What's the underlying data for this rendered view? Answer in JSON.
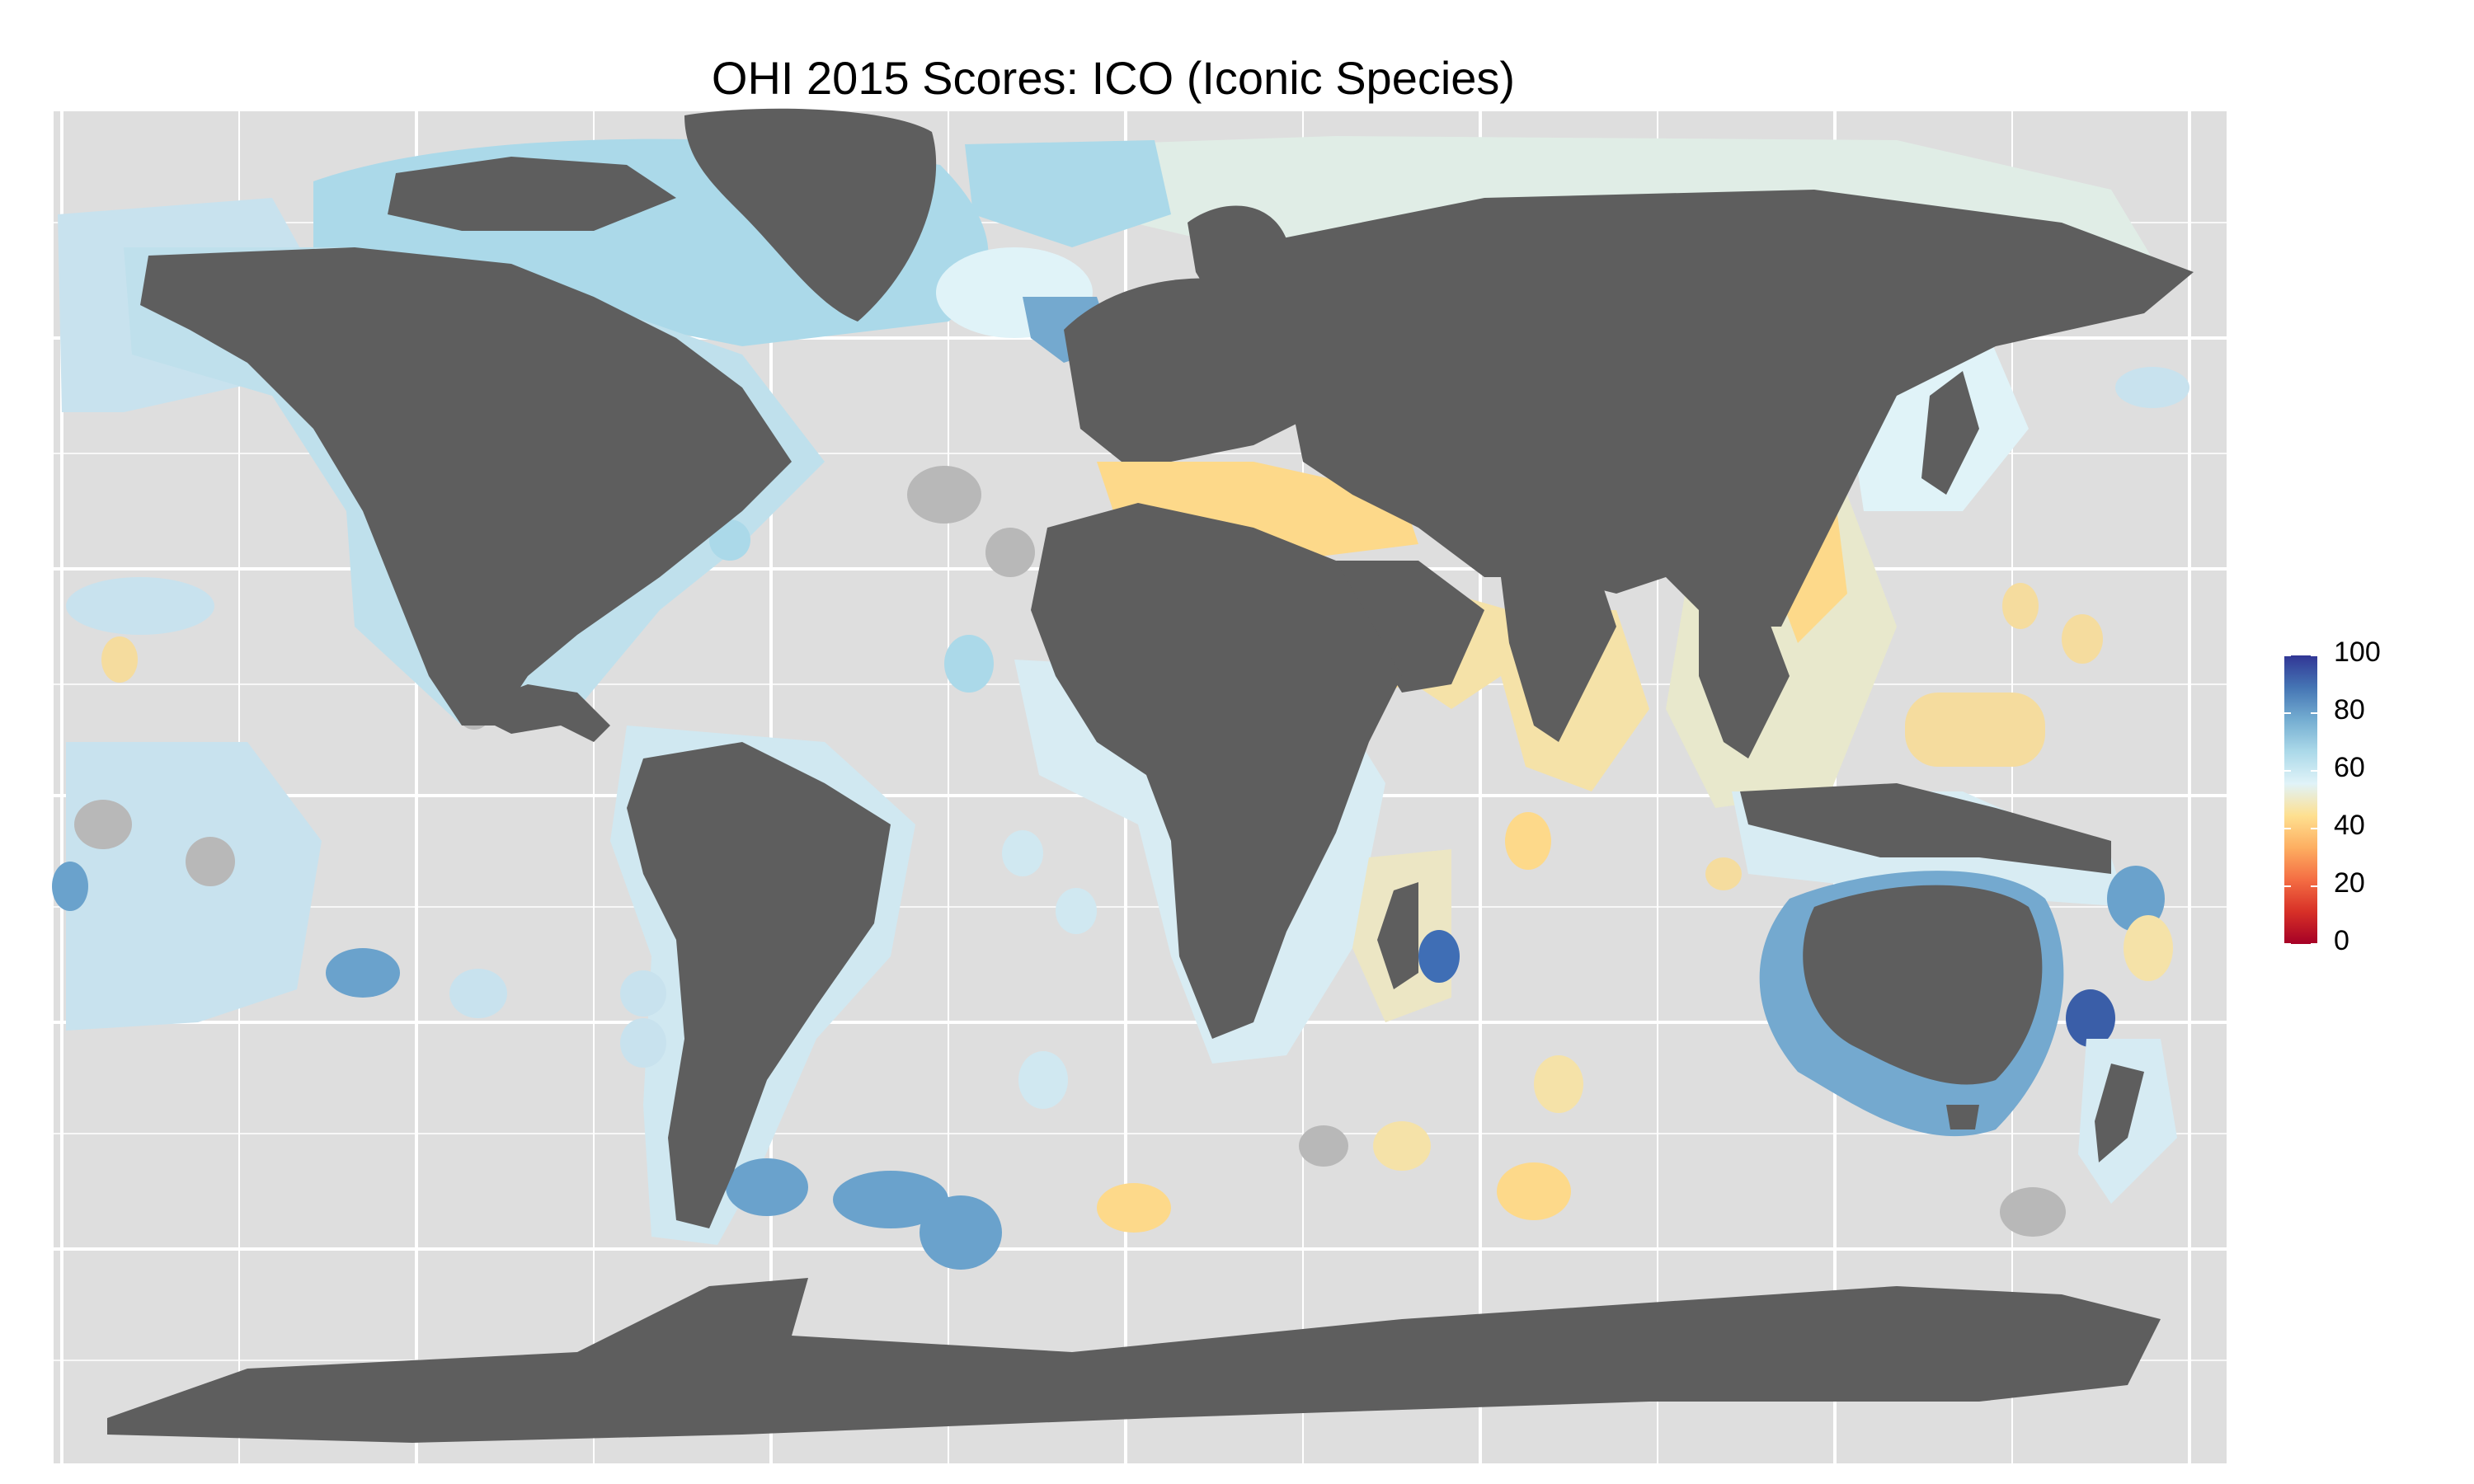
{
  "title": "OHI 2015 Scores: ICO (Iconic Species)",
  "legend": {
    "ticks": [
      "100",
      "80",
      "60",
      "40",
      "20",
      "0"
    ],
    "colors": [
      "#313695",
      "#4575b4",
      "#74add1",
      "#abd9e9",
      "#e0f3f8",
      "#fee090",
      "#fdae61",
      "#f46d43",
      "#d73027",
      "#a50026"
    ]
  },
  "colors": {
    "panel": "#dedede",
    "gridline": "#ffffff",
    "land": "#5e5e5e",
    "no_data": "#b8b8b8"
  }
}
